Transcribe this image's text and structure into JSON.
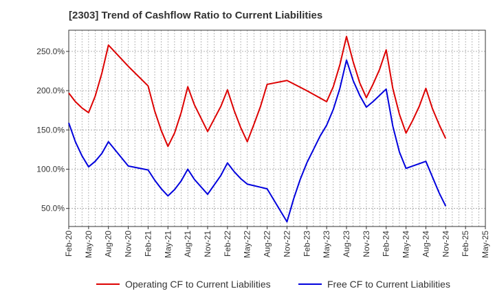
{
  "chart_data": {
    "type": "line",
    "title": "[2303]  Trend of Cashflow Ratio to Current Liabilities",
    "xlabel": "",
    "ylabel": "",
    "ylim": [
      27,
      277
    ],
    "y_ticks": [
      50,
      100,
      150,
      200,
      250
    ],
    "y_tick_labels": [
      "50.0%",
      "100.0%",
      "150.0%",
      "200.0%",
      "250.0%"
    ],
    "x_tick_labels": [
      "Feb-20",
      "May-20",
      "Aug-20",
      "Nov-20",
      "Feb-21",
      "May-21",
      "Aug-21",
      "Nov-21",
      "Feb-22",
      "May-22",
      "Aug-22",
      "Nov-22",
      "Feb-23",
      "May-23",
      "Aug-23",
      "Nov-23",
      "Feb-24",
      "May-24",
      "Aug-24",
      "Nov-24",
      "Feb-25",
      "May-25"
    ],
    "x_start": "Feb-20",
    "x_end": "May-25",
    "grid": true,
    "legend_position": "bottom",
    "series": [
      {
        "name": "Operating CF to Current Liabilities",
        "color": "#dd0000",
        "points": [
          [
            "Feb-20",
            197
          ],
          [
            "Mar-20",
            186
          ],
          [
            "Apr-20",
            178
          ],
          [
            "May-20",
            172
          ],
          [
            "Jun-20",
            193
          ],
          [
            "Jul-20",
            222
          ],
          [
            "Aug-20",
            258
          ],
          [
            "Nov-20",
            231
          ],
          [
            "Feb-21",
            206
          ],
          [
            "Mar-21",
            174
          ],
          [
            "Apr-21",
            149
          ],
          [
            "May-21",
            129
          ],
          [
            "Jun-21",
            146
          ],
          [
            "Jul-21",
            172
          ],
          [
            "Aug-21",
            205
          ],
          [
            "Sep-21",
            182
          ],
          [
            "Nov-21",
            148
          ],
          [
            "Jan-22",
            180
          ],
          [
            "Feb-22",
            201
          ],
          [
            "Mar-22",
            175
          ],
          [
            "Apr-22",
            153
          ],
          [
            "May-22",
            135
          ],
          [
            "Jun-22",
            157
          ],
          [
            "Jul-22",
            180
          ],
          [
            "Aug-22",
            208
          ],
          [
            "Nov-22",
            213
          ],
          [
            "Feb-23",
            200
          ],
          [
            "May-23",
            186
          ],
          [
            "Jun-23",
            205
          ],
          [
            "Jul-23",
            233
          ],
          [
            "Aug-23",
            269
          ],
          [
            "Sep-23",
            237
          ],
          [
            "Oct-23",
            210
          ],
          [
            "Nov-23",
            191
          ],
          [
            "Dec-23",
            208
          ],
          [
            "Jan-24",
            227
          ],
          [
            "Feb-24",
            252
          ],
          [
            "Mar-24",
            203
          ],
          [
            "Apr-24",
            170
          ],
          [
            "May-24",
            146
          ],
          [
            "Jun-24",
            162
          ],
          [
            "Jul-24",
            180
          ],
          [
            "Aug-24",
            203
          ],
          [
            "Sep-24",
            177
          ],
          [
            "Oct-24",
            157
          ],
          [
            "Nov-24",
            139
          ]
        ]
      },
      {
        "name": "Free CF to Current Liabilities",
        "color": "#0000dd",
        "points": [
          [
            "Feb-20",
            159
          ],
          [
            "Mar-20",
            135
          ],
          [
            "Apr-20",
            117
          ],
          [
            "May-20",
            103
          ],
          [
            "Jun-20",
            110
          ],
          [
            "Jul-20",
            120
          ],
          [
            "Aug-20",
            135
          ],
          [
            "Nov-20",
            104
          ],
          [
            "Feb-21",
            99
          ],
          [
            "Mar-21",
            86
          ],
          [
            "Apr-21",
            75
          ],
          [
            "May-21",
            66
          ],
          [
            "Jun-21",
            74
          ],
          [
            "Jul-21",
            85
          ],
          [
            "Aug-21",
            100
          ],
          [
            "Sep-21",
            87
          ],
          [
            "Nov-21",
            68
          ],
          [
            "Jan-22",
            92
          ],
          [
            "Feb-22",
            108
          ],
          [
            "Mar-22",
            97
          ],
          [
            "Apr-22",
            88
          ],
          [
            "May-22",
            81
          ],
          [
            "Aug-22",
            75
          ],
          [
            "Nov-22",
            33
          ],
          [
            "Dec-22",
            62
          ],
          [
            "Jan-23",
            87
          ],
          [
            "Feb-23",
            108
          ],
          [
            "Mar-23",
            125
          ],
          [
            "Apr-23",
            142
          ],
          [
            "May-23",
            156
          ],
          [
            "Jun-23",
            176
          ],
          [
            "Jul-23",
            203
          ],
          [
            "Aug-23",
            239
          ],
          [
            "Sep-23",
            213
          ],
          [
            "Oct-23",
            194
          ],
          [
            "Nov-23",
            179
          ],
          [
            "Dec-23",
            186
          ],
          [
            "Jan-24",
            194
          ],
          [
            "Feb-24",
            202
          ],
          [
            "Mar-24",
            155
          ],
          [
            "Apr-24",
            122
          ],
          [
            "May-24",
            101
          ],
          [
            "Aug-24",
            110
          ],
          [
            "Sep-24",
            90
          ],
          [
            "Oct-24",
            70
          ],
          [
            "Nov-24",
            53
          ]
        ]
      }
    ]
  }
}
